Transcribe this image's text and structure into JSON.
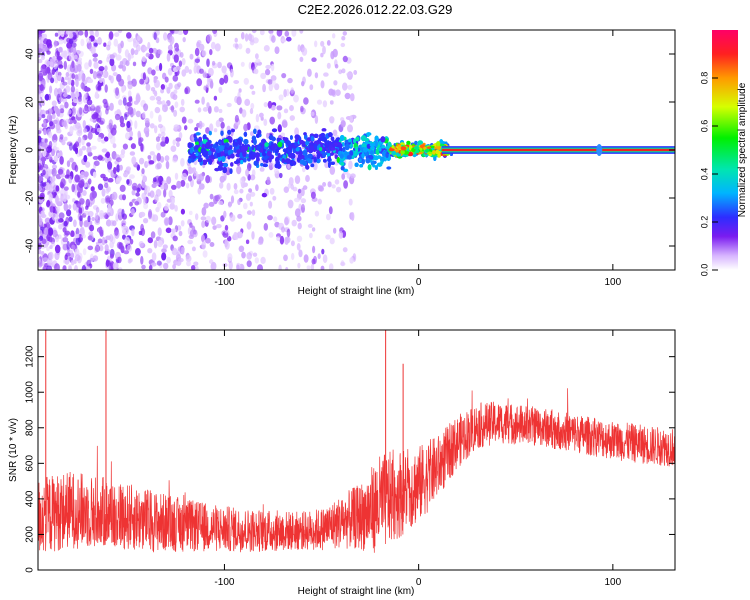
{
  "title": "C2E2.2026.012.22.03.G29",
  "colors": {
    "noise_purple": "#7a1cf0",
    "snr_line": "#ee3333",
    "carrier": "#ee2222",
    "background": "#ffffff"
  },
  "chart_data": [
    {
      "type": "heatmap",
      "name": "spectrogram",
      "xlabel": "Height of straight line (km)",
      "ylabel": "Frequency (Hz)",
      "xlim": [
        -196,
        132
      ],
      "ylim": [
        -50,
        50
      ],
      "xticks": [
        -100,
        0,
        100
      ],
      "yticks": [
        -40,
        -20,
        0,
        20,
        40
      ],
      "colorbar": {
        "label": "Normalized spectral amplitude",
        "range": [
          0,
          1
        ],
        "ticks": [
          "0.0",
          "0.2",
          "0.4",
          "0.6",
          "0.8"
        ],
        "colormap": "rainbow (purple-blue-cyan-green-yellow-orange-red-magenta)"
      },
      "regions": [
        {
          "x_range": [
            -196,
            -35
          ],
          "desc": "scattered noise dots across all frequencies, amplitude 0.0-0.15"
        },
        {
          "x_range": [
            -118,
            -15
          ],
          "freq_center": 0,
          "freq_halfwidth": 10,
          "amplitude": 0.25
        },
        {
          "x_range": [
            -15,
            15
          ],
          "freq_center": 0,
          "freq_halfwidth": 4,
          "amplitude": 0.6
        },
        {
          "x_range": [
            15,
            132
          ],
          "freq_center": 0,
          "freq_halfwidth": 1,
          "amplitude": 0.95
        }
      ]
    },
    {
      "type": "line",
      "name": "snr",
      "xlabel": "Height of straight line (km)",
      "ylabel": "SNR (10 * v/v)",
      "xlim": [
        -196,
        132
      ],
      "ylim": [
        0,
        1350
      ],
      "xticks": [
        -100,
        0,
        100
      ],
      "yticks": [
        0,
        200,
        400,
        600,
        800,
        1000,
        1200
      ],
      "envelope": {
        "x": [
          -196,
          -180,
          -160,
          -140,
          -120,
          -100,
          -80,
          -60,
          -50,
          -40,
          -30,
          -20,
          -10,
          0,
          10,
          20,
          30,
          40,
          60,
          80,
          100,
          120,
          132
        ],
        "y_mean": [
          300,
          340,
          320,
          280,
          250,
          230,
          220,
          220,
          230,
          270,
          300,
          370,
          430,
          480,
          580,
          720,
          810,
          830,
          810,
          770,
          730,
          700,
          690
        ],
        "y_spread": [
          220,
          220,
          200,
          180,
          150,
          130,
          120,
          110,
          120,
          150,
          190,
          280,
          250,
          220,
          180,
          150,
          130,
          120,
          110,
          110,
          110,
          110,
          110
        ]
      },
      "spikes": [
        {
          "x": -192,
          "y": 1350
        },
        {
          "x": -161,
          "y": 1350
        },
        {
          "x": -17,
          "y": 1350
        },
        {
          "x": -8,
          "y": 1160
        }
      ]
    }
  ]
}
